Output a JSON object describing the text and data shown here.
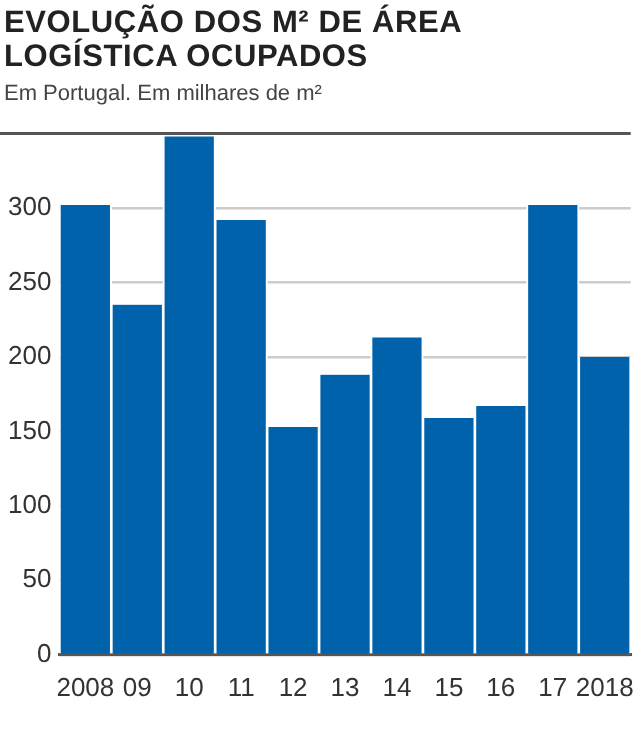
{
  "chart_data": {
    "type": "bar",
    "title": "EVOLUÇÃO DOS M² DE ÁREA LOGÍSTICA OCUPADOS",
    "subtitle": "Em Portugal. Em milhares de m²",
    "categories": [
      "2008",
      "09",
      "10",
      "11",
      "12",
      "13",
      "14",
      "15",
      "16",
      "17",
      "2018"
    ],
    "values": [
      302,
      235,
      348,
      292,
      153,
      188,
      213,
      159,
      167,
      302,
      200
    ],
    "color": "#0062aa",
    "ylim": [
      0,
      350
    ],
    "yticks": [
      0,
      50,
      100,
      150,
      200,
      250,
      300
    ],
    "grid": "y",
    "legend": false
  }
}
